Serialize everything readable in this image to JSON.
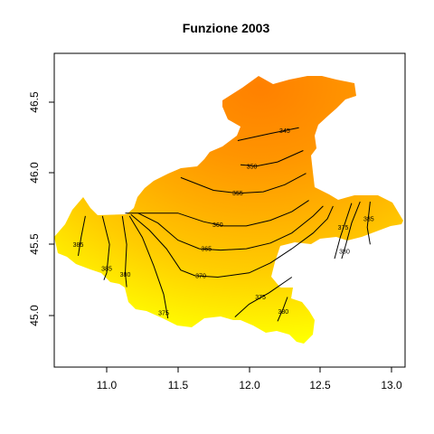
{
  "chart_data": {
    "type": "heatmap",
    "title": "Funzione 2003",
    "xlabel": "",
    "ylabel": "",
    "xlim": [
      10.63,
      13.09
    ],
    "ylim": [
      44.63,
      46.83
    ],
    "x_ticks": [
      "11.0",
      "11.5",
      "12.0",
      "12.5",
      "13.0"
    ],
    "y_ticks": [
      "45.0",
      "45.5",
      "46.0",
      "46.5"
    ],
    "color_low": "#ff8000",
    "color_high": "#ffff00",
    "contours": [
      {
        "level": "345",
        "points": [
          [
            11.92,
            46.23
          ],
          [
            12.15,
            46.28
          ],
          [
            12.35,
            46.32
          ]
        ],
        "label_at": [
          12.25,
          46.3
        ]
      },
      {
        "level": "350",
        "points": [
          [
            11.94,
            46.06
          ],
          [
            12.05,
            46.05
          ],
          [
            12.2,
            46.08
          ],
          [
            12.38,
            46.16
          ]
        ],
        "label_at": [
          12.02,
          46.05
        ]
      },
      {
        "level": "355",
        "points": [
          [
            11.52,
            45.97
          ],
          [
            11.75,
            45.88
          ],
          [
            11.92,
            45.86
          ],
          [
            12.1,
            45.87
          ],
          [
            12.25,
            45.92
          ],
          [
            12.4,
            46.0
          ]
        ],
        "label_at": [
          11.92,
          45.86
        ]
      },
      {
        "level": "360",
        "points": [
          [
            11.13,
            45.72
          ],
          [
            11.3,
            45.72
          ],
          [
            11.5,
            45.72
          ],
          [
            11.68,
            45.66
          ],
          [
            11.82,
            45.63
          ],
          [
            11.98,
            45.63
          ],
          [
            12.15,
            45.67
          ],
          [
            12.3,
            45.73
          ],
          [
            12.42,
            45.81
          ]
        ],
        "label_at": [
          11.78,
          45.64
        ]
      },
      {
        "level": "365",
        "points": [
          [
            11.22,
            45.72
          ],
          [
            11.36,
            45.65
          ],
          [
            11.5,
            45.53
          ],
          [
            11.65,
            45.47
          ],
          [
            11.8,
            45.46
          ],
          [
            11.98,
            45.47
          ],
          [
            12.15,
            45.51
          ],
          [
            12.3,
            45.58
          ],
          [
            12.45,
            45.7
          ],
          [
            12.52,
            45.77
          ]
        ],
        "label_at": [
          11.7,
          45.47
        ]
      },
      {
        "level": "370",
        "points": [
          [
            11.17,
            45.71
          ],
          [
            11.3,
            45.6
          ],
          [
            11.42,
            45.47
          ],
          [
            11.52,
            45.32
          ],
          [
            11.62,
            45.28
          ],
          [
            11.78,
            45.27
          ],
          [
            12.0,
            45.3
          ],
          [
            12.15,
            45.37
          ],
          [
            12.3,
            45.47
          ],
          [
            12.45,
            45.58
          ],
          [
            12.55,
            45.68
          ],
          [
            12.59,
            45.77
          ]
        ],
        "label_at": [
          11.66,
          45.28
        ]
      },
      {
        "level": "375",
        "points": [
          [
            11.16,
            45.7
          ],
          [
            11.25,
            45.55
          ],
          [
            11.33,
            45.35
          ],
          [
            11.4,
            45.15
          ],
          [
            11.43,
            44.98
          ]
        ],
        "label_at": [
          11.4,
          45.02
        ]
      },
      {
        "level": "375",
        "points": [
          [
            11.9,
            44.99
          ],
          [
            12.0,
            45.08
          ],
          [
            12.14,
            45.16
          ],
          [
            12.3,
            45.27
          ]
        ],
        "label_at": [
          12.08,
          45.13
        ]
      },
      {
        "level": "375",
        "points": [
          [
            12.6,
            45.4
          ],
          [
            12.64,
            45.55
          ],
          [
            12.68,
            45.67
          ],
          [
            12.72,
            45.79
          ]
        ],
        "label_at": [
          12.66,
          45.62
        ]
      },
      {
        "level": "380",
        "points": [
          [
            11.11,
            45.7
          ],
          [
            11.14,
            45.5
          ],
          [
            11.13,
            45.3
          ],
          [
            11.14,
            45.2
          ]
        ],
        "label_at": [
          11.13,
          45.29
        ]
      },
      {
        "level": "380",
        "points": [
          [
            12.2,
            44.96
          ],
          [
            12.24,
            45.05
          ],
          [
            12.27,
            45.13
          ]
        ],
        "label_at": [
          12.24,
          45.03
        ]
      },
      {
        "level": "380",
        "points": [
          [
            12.65,
            45.4
          ],
          [
            12.68,
            45.5
          ],
          [
            12.72,
            45.65
          ],
          [
            12.78,
            45.8
          ]
        ],
        "label_at": [
          12.67,
          45.45
        ]
      },
      {
        "level": "385",
        "points": [
          [
            10.97,
            45.7
          ],
          [
            11.02,
            45.5
          ],
          [
            11.0,
            45.3
          ],
          [
            10.98,
            45.25
          ]
        ],
        "label_at": [
          11.0,
          45.33
        ]
      },
      {
        "level": "385",
        "points": [
          [
            12.85,
            45.5
          ],
          [
            12.83,
            45.62
          ],
          [
            12.85,
            45.8
          ]
        ],
        "label_at": [
          12.84,
          45.68
        ]
      },
      {
        "level": "385",
        "points": [
          [
            10.85,
            45.7
          ],
          [
            10.82,
            45.55
          ],
          [
            10.8,
            45.42
          ]
        ],
        "label_at": [
          10.8,
          45.5
        ]
      }
    ]
  }
}
